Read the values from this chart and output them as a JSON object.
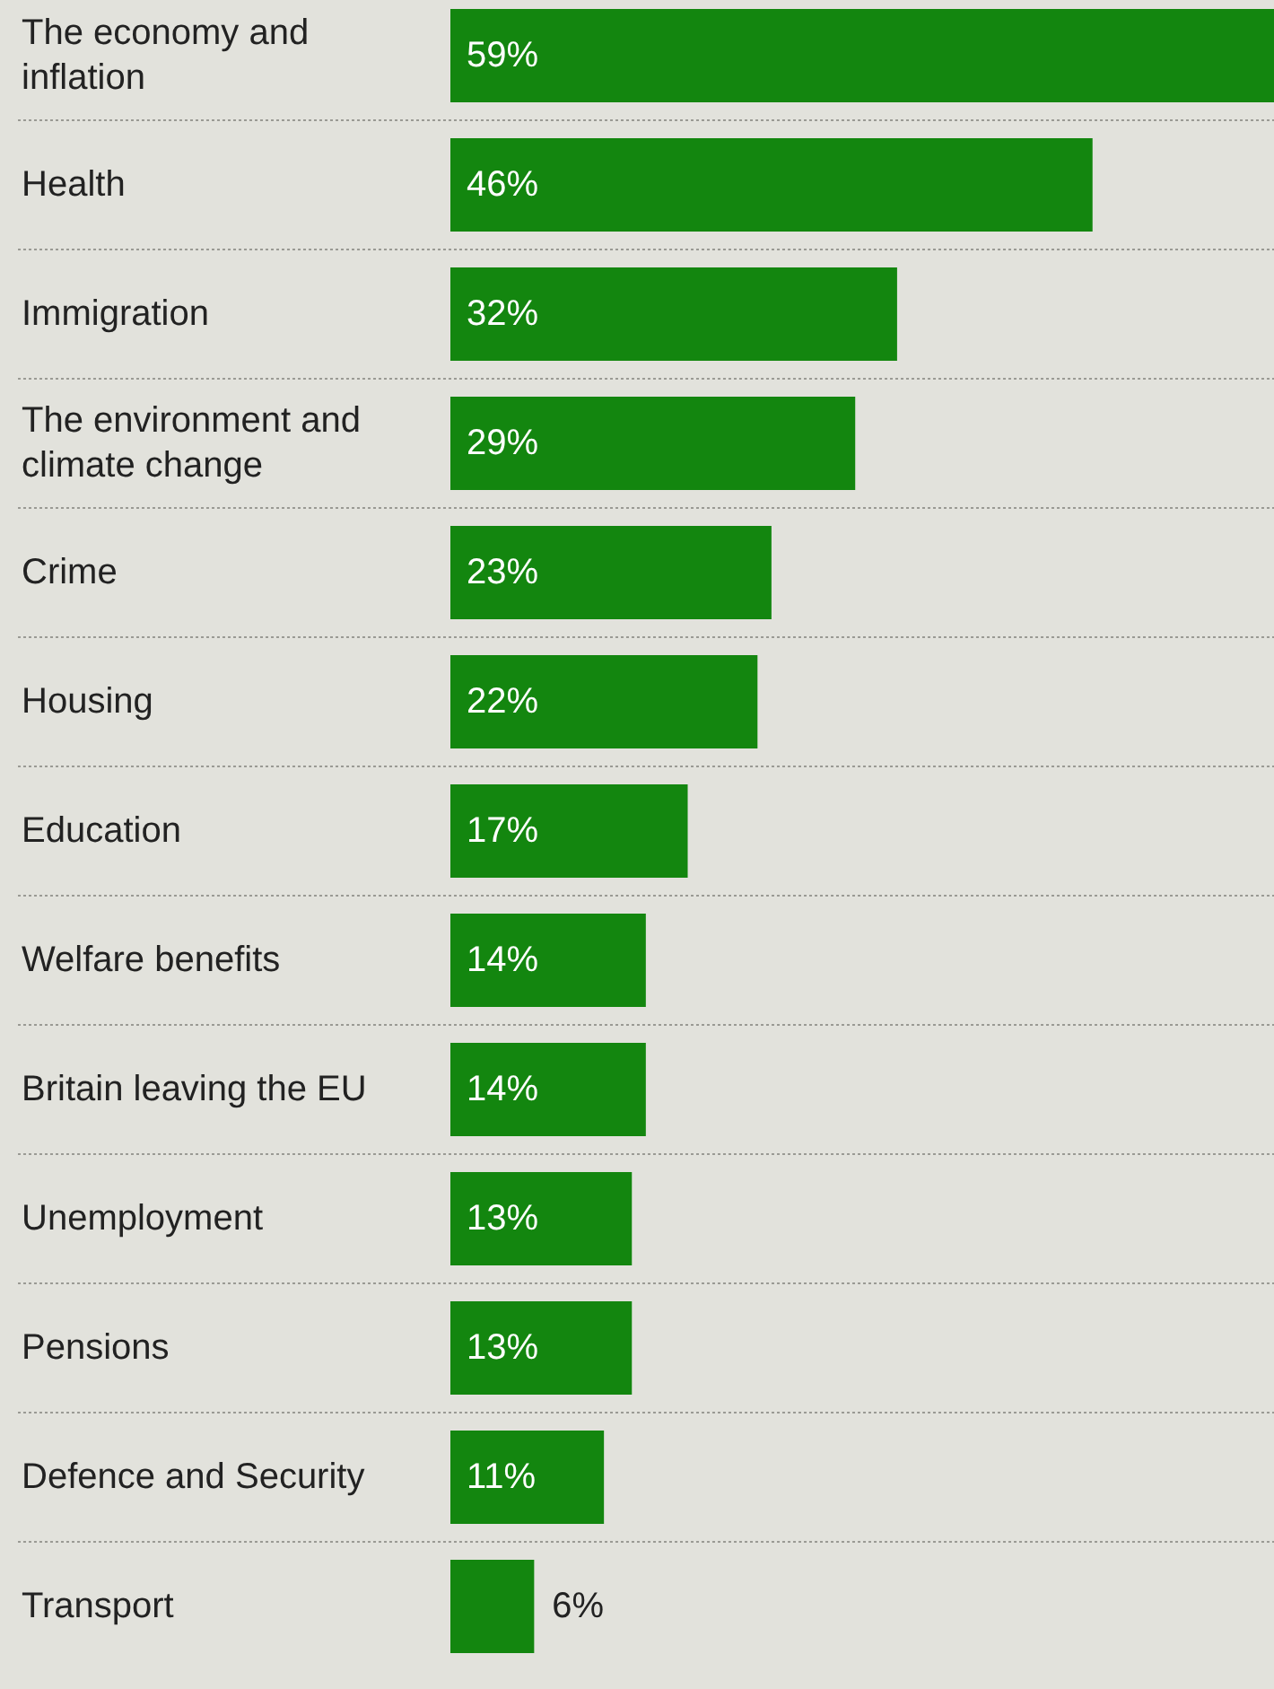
{
  "chart_data": {
    "type": "bar",
    "orientation": "horizontal",
    "categories": [
      "The economy and inflation",
      "Health",
      "Immigration",
      "The environment and climate change",
      "Crime",
      "Housing",
      "Education",
      "Welfare benefits",
      "Britain leaving the EU",
      "Unemployment",
      "Pensions",
      "Defence and Security",
      "Transport"
    ],
    "values": [
      59,
      46,
      32,
      29,
      23,
      22,
      17,
      14,
      14,
      13,
      13,
      11,
      6
    ],
    "value_labels": [
      "59%",
      "46%",
      "32%",
      "29%",
      "23%",
      "22%",
      "17%",
      "14%",
      "14%",
      "13%",
      "13%",
      "11%",
      "6%"
    ],
    "color": "#13860f"
  }
}
